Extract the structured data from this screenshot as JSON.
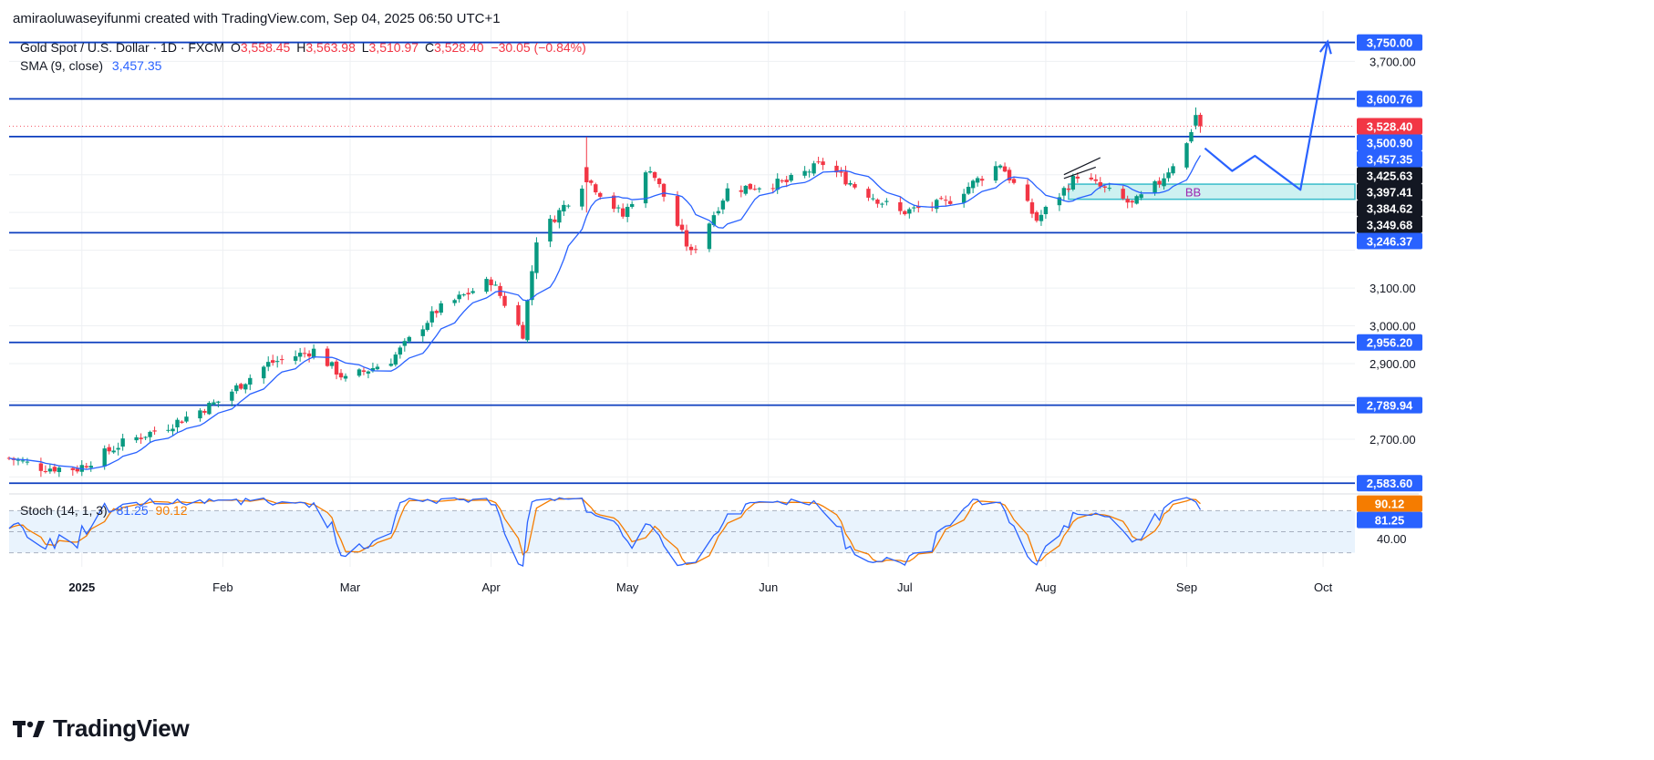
{
  "header": {
    "created_by": "amiraoluwaseyifunmi created with TradingView.com, Sep 04, 2025 06:50 UTC+1"
  },
  "legend": {
    "symbol": "Gold Spot / U.S. Dollar · 1D · FXCM",
    "open_label": "O",
    "open": "3,558.45",
    "high_label": "H",
    "high": "3,563.98",
    "low_label": "L",
    "low": "3,510.97",
    "close_label": "C",
    "close": "3,528.40",
    "change": "−30.05 (−0.84%)",
    "sma_label": "SMA (9, close)",
    "sma_value": "3,457.35",
    "stoch_label": "Stoch (14, 1, 3)",
    "stoch_k": "81.25",
    "stoch_d": "90.12"
  },
  "brand": {
    "name": "TradingView"
  },
  "colors": {
    "up": "#089981",
    "down": "#f23645",
    "sma": "#2962ff",
    "level": "#0d3fbf",
    "stoch_k": "#2962ff",
    "stoch_d": "#f57c00",
    "box_fill": "#c8f0f0",
    "box_stroke": "#22b5c5"
  },
  "chart_data": [
    {
      "type": "candlestick",
      "title": "Gold Spot / U.S. Dollar · 1D · FXCM",
      "ylim": [
        2560,
        3790
      ],
      "x_range": [
        "2024-12-16",
        "2025-10-08"
      ],
      "x_ticks": [
        {
          "date": "2025-01-01",
          "label": "2025"
        },
        {
          "date": "2025-02-01",
          "label": "Feb"
        },
        {
          "date": "2025-03-01",
          "label": "Mar"
        },
        {
          "date": "2025-04-01",
          "label": "Apr"
        },
        {
          "date": "2025-05-01",
          "label": "May"
        },
        {
          "date": "2025-06-01",
          "label": "Jun"
        },
        {
          "date": "2025-07-01",
          "label": "Jul"
        },
        {
          "date": "2025-08-01",
          "label": "Aug"
        },
        {
          "date": "2025-09-01",
          "label": "Sep"
        },
        {
          "date": "2025-10-01",
          "label": "Oct"
        }
      ],
      "y_ticks": [
        {
          "value": 3700,
          "label": "3,700.00"
        },
        {
          "value": 3100,
          "label": "3,100.00"
        },
        {
          "value": 3000,
          "label": "3,000.00"
        },
        {
          "value": 2900,
          "label": "2,900.00"
        },
        {
          "value": 2700,
          "label": "2,700.00"
        }
      ],
      "levels": [
        3750.0,
        3600.76,
        3500.9,
        3246.37,
        2956.2,
        2789.94,
        2583.6
      ],
      "price_tags": [
        {
          "value": 3750.0,
          "label": "3,750.00",
          "color": "#2962ff"
        },
        {
          "value": 3600.76,
          "label": "3,600.76",
          "color": "#2962ff"
        },
        {
          "value": 3528.4,
          "label": "3,528.40",
          "color": "#f23645"
        },
        {
          "value": 3500.9,
          "label": "3,500.90",
          "color": "#2962ff"
        },
        {
          "value": 3457.35,
          "label": "3,457.35",
          "color": "#2962ff"
        },
        {
          "value": 3425.63,
          "label": "3,425.63",
          "color": "#131722"
        },
        {
          "value": 3397.41,
          "label": "3,397.41",
          "color": "#131722"
        },
        {
          "value": 3384.62,
          "label": "3,384.62",
          "color": "#131722"
        },
        {
          "value": 3349.68,
          "label": "3,349.68",
          "color": "#131722"
        },
        {
          "value": 3246.37,
          "label": "3,246.37",
          "color": "#2962ff"
        },
        {
          "value": 2956.2,
          "label": "2,956.20",
          "color": "#2962ff"
        },
        {
          "value": 2789.94,
          "label": "2,789.94",
          "color": "#2962ff"
        },
        {
          "value": 2583.6,
          "label": "2,583.60",
          "color": "#2962ff"
        }
      ],
      "anchors": [
        {
          "date": "2024-12-16",
          "close": 2650
        },
        {
          "date": "2024-12-23",
          "close": 2625
        },
        {
          "date": "2024-12-31",
          "close": 2622
        },
        {
          "date": "2025-01-10",
          "close": 2690
        },
        {
          "date": "2025-01-20",
          "close": 2735
        },
        {
          "date": "2025-01-31",
          "close": 2800
        },
        {
          "date": "2025-02-11",
          "close": 2900
        },
        {
          "date": "2025-02-21",
          "close": 2935
        },
        {
          "date": "2025-02-28",
          "close": 2858
        },
        {
          "date": "2025-03-10",
          "close": 2910
        },
        {
          "date": "2025-03-20",
          "close": 3040
        },
        {
          "date": "2025-04-01",
          "close": 3120
        },
        {
          "date": "2025-04-08",
          "close": 2980
        },
        {
          "date": "2025-04-11",
          "close": 3230
        },
        {
          "date": "2025-04-22",
          "close": 3390
        },
        {
          "date": "2025-04-30",
          "close": 3290
        },
        {
          "date": "2025-05-06",
          "close": 3420
        },
        {
          "date": "2025-05-15",
          "close": 3190
        },
        {
          "date": "2025-05-23",
          "close": 3360
        },
        {
          "date": "2025-06-05",
          "close": 3380
        },
        {
          "date": "2025-06-13",
          "close": 3430
        },
        {
          "date": "2025-06-20",
          "close": 3370
        },
        {
          "date": "2025-06-30",
          "close": 3300
        },
        {
          "date": "2025-07-10",
          "close": 3325
        },
        {
          "date": "2025-07-22",
          "close": 3430
        },
        {
          "date": "2025-07-30",
          "close": 3280
        },
        {
          "date": "2025-08-08",
          "close": 3400
        },
        {
          "date": "2025-08-20",
          "close": 3320
        },
        {
          "date": "2025-08-26",
          "close": 3380
        },
        {
          "date": "2025-09-01",
          "close": 3480
        },
        {
          "date": "2025-09-03",
          "close": 3558
        },
        {
          "date": "2025-09-04",
          "close": 3528
        }
      ],
      "highlighted_candles": [
        {
          "date": "2025-04-22",
          "open": 3420,
          "high": 3500,
          "low": 3300,
          "close": 3380
        },
        {
          "date": "2025-09-03",
          "open": 3530,
          "high": 3578,
          "low": 3520,
          "close": 3558
        },
        {
          "date": "2025-09-04",
          "open": 3558.45,
          "high": 3563.98,
          "low": 3510.97,
          "close": 3528.4
        }
      ],
      "projection": [
        {
          "date": "2025-09-05",
          "value": 3470
        },
        {
          "date": "2025-09-11",
          "value": 3410
        },
        {
          "date": "2025-09-16",
          "value": 3450
        },
        {
          "date": "2025-09-26",
          "value": 3360
        },
        {
          "date": "2025-10-02",
          "value": 3752
        }
      ],
      "zone": {
        "date_from": "2025-08-06",
        "date_to": "2025-10-08",
        "top": 3375,
        "bottom": 3335,
        "label": "BB"
      },
      "trendlines": [
        {
          "from": {
            "date": "2025-08-05",
            "value": 3390
          },
          "to": {
            "date": "2025-08-12",
            "value": 3420
          }
        },
        {
          "from": {
            "date": "2025-08-05",
            "value": 3400
          },
          "to": {
            "date": "2025-08-13",
            "value": 3445
          }
        }
      ]
    },
    {
      "type": "line",
      "title": "Stoch (14, 1, 3)",
      "ylim": [
        0,
        100
      ],
      "y_ticks": [
        {
          "value": 40,
          "label": "40.00"
        }
      ],
      "bands": [
        80,
        20
      ],
      "band_mid": 50,
      "tags": [
        {
          "value": 90.12,
          "label": "90.12",
          "color": "#f57c00"
        },
        {
          "value": 81.25,
          "label": "81.25",
          "color": "#2962ff"
        }
      ],
      "series": [
        {
          "name": "%K",
          "color": "#2962ff"
        },
        {
          "name": "%D",
          "color": "#f57c00"
        }
      ]
    }
  ]
}
